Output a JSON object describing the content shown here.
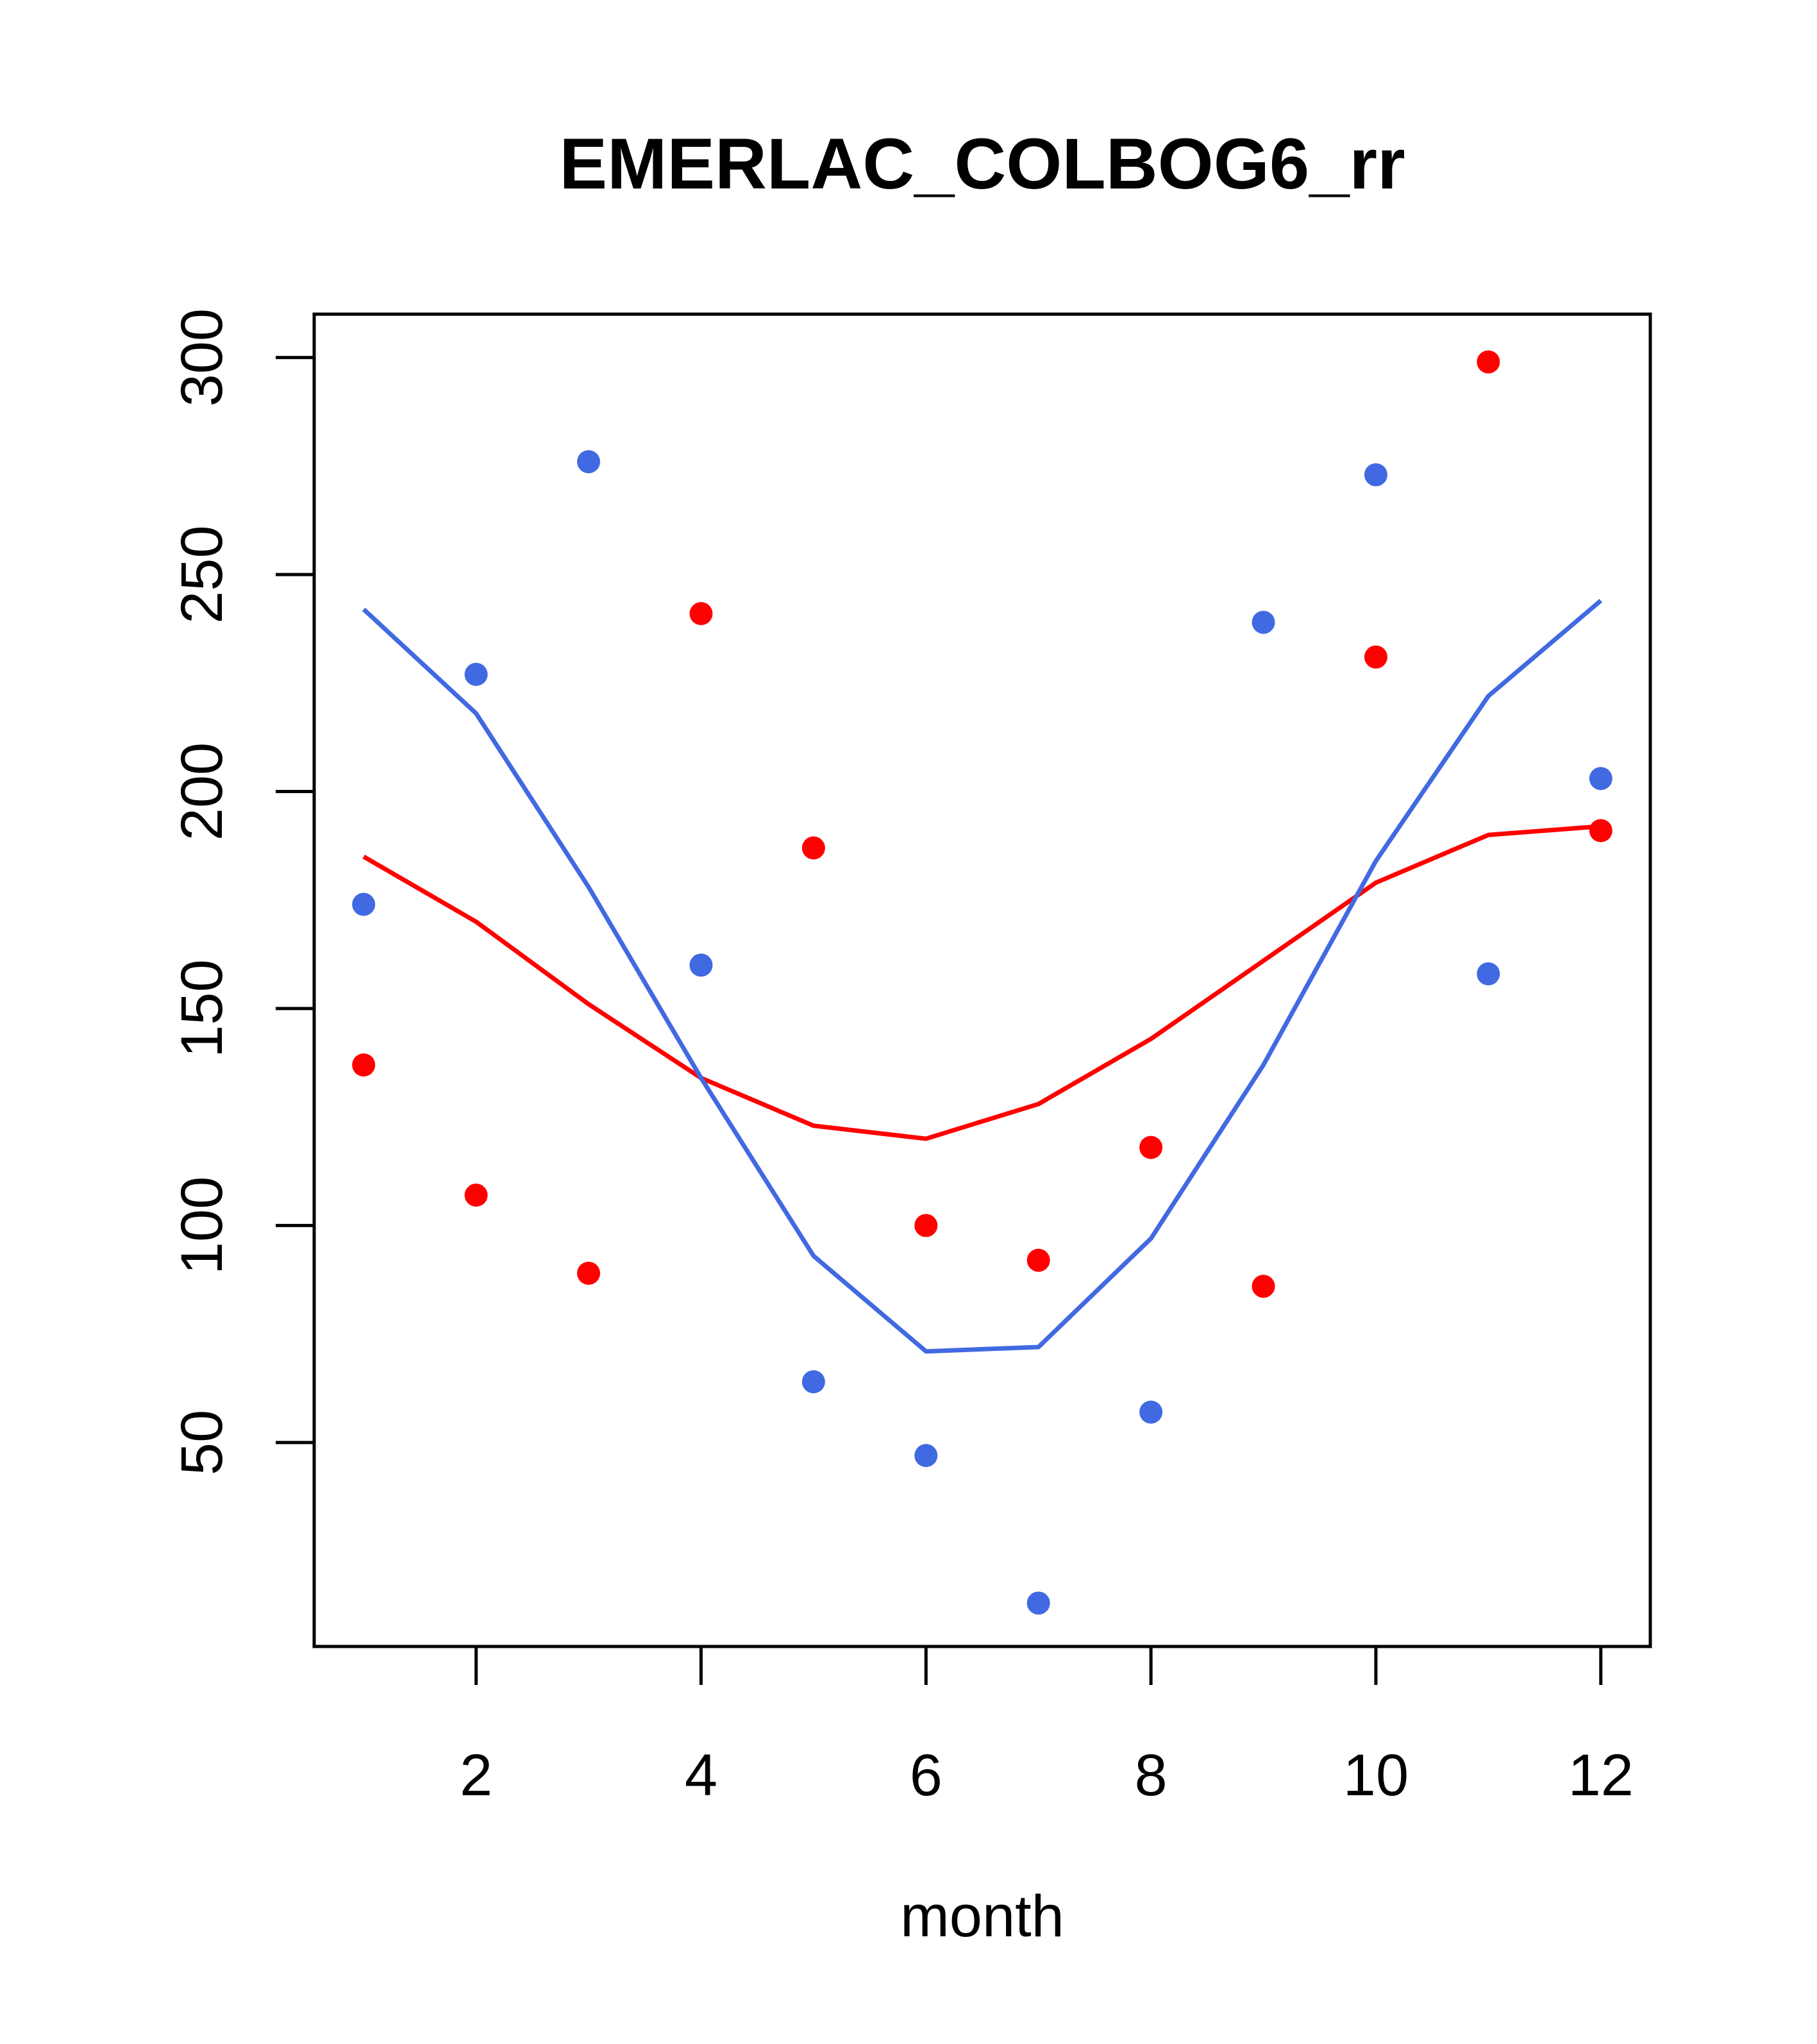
{
  "chart_data": {
    "type": "scatter",
    "title": "EMERLAC_COLBOG6_rr",
    "xlabel": "month",
    "ylabel": "",
    "xlim": [
      0.56,
      12.44
    ],
    "ylim": [
      3,
      310
    ],
    "x_ticks": [
      2,
      4,
      6,
      8,
      10,
      12
    ],
    "y_ticks": [
      50,
      100,
      150,
      200,
      250,
      300
    ],
    "grid": false,
    "legend": "none",
    "series": [
      {
        "kind": "points",
        "color": "#ff0000",
        "x": [
          1,
          2,
          3,
          4,
          5,
          6,
          7,
          8,
          9,
          10,
          11,
          12
        ],
        "values": [
          137,
          107,
          89,
          241,
          187,
          100,
          92,
          118,
          86,
          231,
          299,
          191
        ]
      },
      {
        "kind": "points",
        "color": "#4169e1",
        "x": [
          1,
          2,
          3,
          4,
          5,
          6,
          7,
          8,
          9,
          10,
          11,
          12
        ],
        "values": [
          174,
          227,
          276,
          160,
          64,
          47,
          13,
          57,
          239,
          273,
          158,
          203
        ]
      },
      {
        "kind": "line",
        "color": "#ff0000",
        "x": [
          1,
          2,
          3,
          4,
          5,
          6,
          7,
          8,
          9,
          10,
          11,
          12
        ],
        "values": [
          185,
          170,
          151,
          134,
          123,
          120,
          128,
          143,
          161,
          179,
          190,
          192
        ]
      },
      {
        "kind": "line",
        "color": "#4169e1",
        "x": [
          1,
          2,
          3,
          4,
          5,
          6,
          7,
          8,
          9,
          10,
          11,
          12
        ],
        "values": [
          242,
          218,
          178,
          134,
          93,
          71,
          72,
          97,
          137,
          184,
          222,
          244
        ]
      }
    ]
  }
}
